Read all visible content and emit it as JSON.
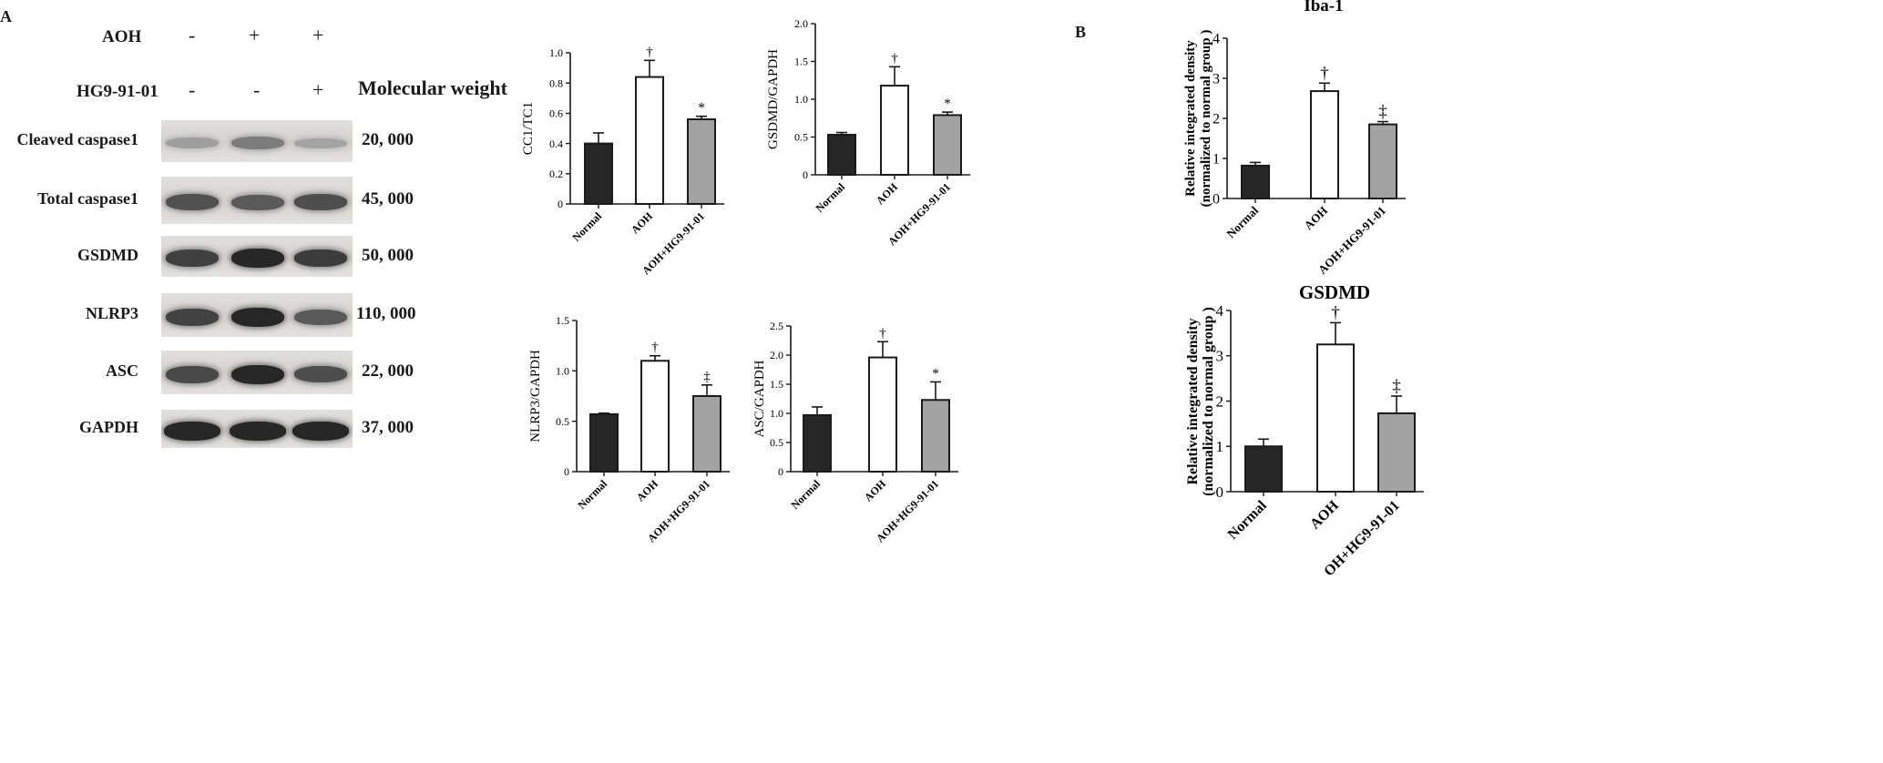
{
  "panel_labels": {
    "a": "A",
    "b": "B"
  },
  "conditions": {
    "rows": [
      {
        "label": "AOH",
        "signs": [
          "-",
          "+",
          "+"
        ]
      },
      {
        "label": "HG9-91-01",
        "signs": [
          "-",
          "-",
          "+"
        ]
      }
    ],
    "molecular_weight_header": "Molecular weight"
  },
  "blots": [
    {
      "protein": "Cleaved caspase1",
      "mw": "20, 000",
      "intensity": [
        0.25,
        0.45,
        0.22
      ]
    },
    {
      "protein": "Total caspase1",
      "mw": "45, 000",
      "intensity": [
        0.7,
        0.65,
        0.72
      ]
    },
    {
      "protein": "GSDMD",
      "mw": "50, 000",
      "intensity": [
        0.8,
        0.95,
        0.82
      ]
    },
    {
      "protein": "NLRP3",
      "mw": "110, 000",
      "intensity": [
        0.78,
        0.95,
        0.65
      ]
    },
    {
      "protein": "ASC",
      "mw": "22, 000",
      "intensity": [
        0.75,
        0.95,
        0.72
      ]
    },
    {
      "protein": "GAPDH",
      "mw": "37, 000",
      "intensity": [
        0.95,
        0.95,
        0.95
      ]
    }
  ],
  "colors": {
    "normal": "#262626",
    "aoh": "#ffffff",
    "treated": "#a3a3a3",
    "axis": "#1a1a1a"
  },
  "chart_data": [
    {
      "type": "bar",
      "title": "",
      "ylabel": "CC1/TC1",
      "ylim": [
        0,
        1.0
      ],
      "yticks": [
        "0",
        "0.2",
        "0.4",
        "0.6",
        "0.8",
        "1.0"
      ],
      "ytick_values": [
        0,
        0.2,
        0.4,
        0.6,
        0.8,
        1.0
      ],
      "categories": [
        "Normal",
        "AOH",
        "AOH+HG9-91-01"
      ],
      "values": [
        0.4,
        0.84,
        0.56
      ],
      "errors": [
        0.07,
        0.11,
        0.02
      ],
      "marks": [
        "",
        "†",
        "*"
      ]
    },
    {
      "type": "bar",
      "title": "",
      "ylabel": "GSDMD/GAPDH",
      "ylim": [
        0,
        2.0
      ],
      "yticks": [
        "0",
        "0.5",
        "1.0",
        "1.5",
        "2.0"
      ],
      "ytick_values": [
        0,
        0.5,
        1.0,
        1.5,
        2.0
      ],
      "categories": [
        "Normal",
        "AOH",
        "AOH+HG9-91-01"
      ],
      "values": [
        0.53,
        1.18,
        0.79
      ],
      "errors": [
        0.03,
        0.25,
        0.04
      ],
      "marks": [
        "",
        "†",
        "*"
      ]
    },
    {
      "type": "bar",
      "title": "",
      "ylabel": "NLRP3/GAPDH",
      "ylim": [
        0,
        1.5
      ],
      "yticks": [
        "0",
        "0.5",
        "1.0",
        "1.5"
      ],
      "ytick_values": [
        0,
        0.5,
        1.0,
        1.5
      ],
      "categories": [
        "Normal",
        "AOH",
        "AOH+HG9-91-01"
      ],
      "values": [
        0.57,
        1.1,
        0.75
      ],
      "errors": [
        0.01,
        0.05,
        0.11
      ],
      "marks": [
        "",
        "†",
        "‡"
      ]
    },
    {
      "type": "bar",
      "title": "",
      "ylabel": "ASC/GAPDH",
      "ylim": [
        0,
        2.5
      ],
      "yticks": [
        "0",
        "0.5",
        "1.0",
        "1.5",
        "2.0",
        "2.5"
      ],
      "ytick_values": [
        0,
        0.5,
        1.0,
        1.5,
        2.0,
        2.5
      ],
      "categories": [
        "Normal",
        "AOH",
        "AOH+HG9-91-01"
      ],
      "values": [
        0.97,
        1.96,
        1.23
      ],
      "errors": [
        0.14,
        0.27,
        0.31
      ],
      "marks": [
        "",
        "†",
        "*"
      ]
    },
    {
      "type": "bar",
      "title": "Iba-1",
      "ylabel": "Relative integrated density\n(normalized to normal group )",
      "ylim": [
        0,
        4
      ],
      "yticks": [
        "0",
        "1",
        "2",
        "3",
        "4"
      ],
      "ytick_values": [
        0,
        1,
        2,
        3,
        4
      ],
      "categories": [
        "Normal",
        "AOH",
        "AOH+HG9-91-01"
      ],
      "values": [
        0.82,
        2.68,
        1.85
      ],
      "errors": [
        0.08,
        0.2,
        0.07
      ],
      "marks": [
        "",
        "†",
        "‡"
      ]
    },
    {
      "type": "bar",
      "title": "GSDMD",
      "ylabel": "Relative integrated density\n(normalized to normal group )",
      "ylim": [
        0,
        4
      ],
      "yticks": [
        "0",
        "1",
        "2",
        "3",
        "4"
      ],
      "ytick_values": [
        0,
        1,
        2,
        3,
        4
      ],
      "categories": [
        "Normal",
        "AOH",
        "OH+HG9-91-01"
      ],
      "values": [
        1.0,
        3.25,
        1.73
      ],
      "errors": [
        0.16,
        0.48,
        0.38
      ],
      "marks": [
        "",
        "†",
        "‡"
      ]
    }
  ]
}
